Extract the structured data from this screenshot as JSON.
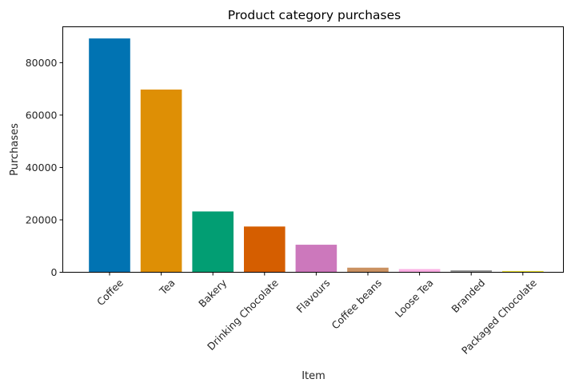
{
  "chart_data": {
    "type": "bar",
    "title": "Product category purchases",
    "xlabel": "Item",
    "ylabel": "Purchases",
    "categories": [
      "Coffee",
      "Tea",
      "Bakery",
      "Drinking Chocolate",
      "Flavours",
      "Coffee beans",
      "Loose Tea",
      "Branded",
      "Packaged Chocolate"
    ],
    "values": [
      89250,
      69740,
      23212,
      17457,
      10511,
      1753,
      1210,
      747,
      487
    ],
    "colors": [
      "#0173b2",
      "#de8f05",
      "#029e73",
      "#d55e00",
      "#cc78bc",
      "#ca9161",
      "#fbafe4",
      "#949494",
      "#ece133"
    ],
    "ylim": [
      0,
      93700
    ],
    "yticks": [
      0,
      20000,
      40000,
      60000,
      80000
    ],
    "grid": false,
    "legend": "none"
  }
}
